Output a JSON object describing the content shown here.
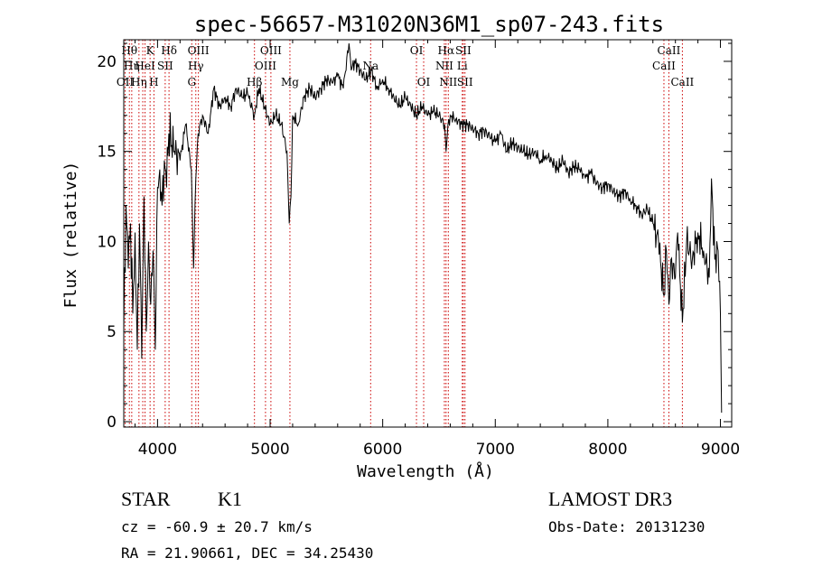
{
  "chart_data": {
    "type": "line",
    "title": "spec-56657-M31020N36M1_sp07-243.fits",
    "xlabel": "Wavelength (Å)",
    "ylabel": "Flux (relative)",
    "xlim": [
      3700,
      9100
    ],
    "ylim": [
      -0.3,
      21.2
    ],
    "xticks": [
      4000,
      5000,
      6000,
      7000,
      8000,
      9000
    ],
    "yticks": [
      0,
      5,
      10,
      15,
      20
    ],
    "grid": false,
    "series": [
      {
        "name": "spectrum",
        "x": [
          3700,
          3720,
          3740,
          3760,
          3780,
          3800,
          3820,
          3840,
          3860,
          3880,
          3900,
          3920,
          3940,
          3960,
          3980,
          4000,
          4020,
          4040,
          4060,
          4080,
          4100,
          4150,
          4200,
          4250,
          4300,
          4320,
          4340,
          4360,
          4400,
          4450,
          4500,
          4550,
          4600,
          4650,
          4700,
          4750,
          4800,
          4860,
          4900,
          4950,
          5000,
          5050,
          5100,
          5150,
          5170,
          5185,
          5200,
          5250,
          5300,
          5350,
          5400,
          5450,
          5500,
          5550,
          5600,
          5650,
          5700,
          5720,
          5750,
          5800,
          5850,
          5900,
          5950,
          6000,
          6050,
          6100,
          6150,
          6200,
          6250,
          6300,
          6350,
          6400,
          6450,
          6500,
          6550,
          6563,
          6580,
          6600,
          6650,
          6700,
          6750,
          6800,
          6850,
          6900,
          6950,
          7000,
          7050,
          7100,
          7150,
          7200,
          7250,
          7300,
          7350,
          7400,
          7450,
          7500,
          7550,
          7600,
          7650,
          7700,
          7750,
          7800,
          7850,
          7900,
          7950,
          8000,
          8050,
          8100,
          8150,
          8200,
          8250,
          8300,
          8350,
          8400,
          8450,
          8498,
          8520,
          8542,
          8560,
          8600,
          8620,
          8662,
          8700,
          8750,
          8800,
          8850,
          8900,
          8920,
          8950,
          8980,
          9000,
          9010
        ],
        "values": [
          5.0,
          12.0,
          8.5,
          11.0,
          6.0,
          10.5,
          4.0,
          11.0,
          3.5,
          12.5,
          5.0,
          10.0,
          6.5,
          9.5,
          4.0,
          13.0,
          14.0,
          12.0,
          14.5,
          13.0,
          16.0,
          15.0,
          14.5,
          16.5,
          14.0,
          8.5,
          13.5,
          16.0,
          17.0,
          16.0,
          18.5,
          17.5,
          18.0,
          17.5,
          18.5,
          18.0,
          18.2,
          17.0,
          18.5,
          17.5,
          16.5,
          17.0,
          16.5,
          15.0,
          11.0,
          12.5,
          17.0,
          16.5,
          18.0,
          18.5,
          18.0,
          18.5,
          19.0,
          18.8,
          19.2,
          18.5,
          21.0,
          19.5,
          20.0,
          19.5,
          19.0,
          19.5,
          18.5,
          19.0,
          18.5,
          18.0,
          17.5,
          18.0,
          17.5,
          17.0,
          17.5,
          17.0,
          17.2,
          17.0,
          16.5,
          15.0,
          16.5,
          17.0,
          16.8,
          16.5,
          16.5,
          16.3,
          16.0,
          16.2,
          15.8,
          15.5,
          16.0,
          15.0,
          15.5,
          15.2,
          15.0,
          14.8,
          15.0,
          14.5,
          14.8,
          14.5,
          14.0,
          14.5,
          13.8,
          14.2,
          14.0,
          13.5,
          13.8,
          13.2,
          13.0,
          13.2,
          12.8,
          12.5,
          12.8,
          12.3,
          12.0,
          11.5,
          11.8,
          11.0,
          10.0,
          7.0,
          9.5,
          6.5,
          9.0,
          8.0,
          10.5,
          5.5,
          10.0,
          9.0,
          10.5,
          9.5,
          8.0,
          13.5,
          9.0,
          9.5,
          6.0,
          0.5
        ]
      }
    ],
    "lines": [
      {
        "x": 3712,
        "label": "OII",
        "row": 2
      },
      {
        "x": 3750,
        "label": "Hθ",
        "row": 0
      },
      {
        "x": 3771,
        "label": "Hη",
        "row": 1
      },
      {
        "x": 3835,
        "label": "Hη",
        "row": 2
      },
      {
        "x": 3869,
        "label": "",
        "row": 0
      },
      {
        "x": 3889,
        "label": "HeI",
        "row": 1
      },
      {
        "x": 3934,
        "label": "K",
        "row": 0
      },
      {
        "x": 3968,
        "label": "H",
        "row": 2
      },
      {
        "x": 4068,
        "label": "SII",
        "row": 1
      },
      {
        "x": 4102,
        "label": "Hδ",
        "row": 0
      },
      {
        "x": 4304,
        "label": "G",
        "row": 2
      },
      {
        "x": 4340,
        "label": "Hγ",
        "row": 1
      },
      {
        "x": 4363,
        "label": "OIII",
        "row": 0
      },
      {
        "x": 4861,
        "label": "Hβ",
        "row": 2
      },
      {
        "x": 4959,
        "label": "OIII",
        "row": 1
      },
      {
        "x": 5007,
        "label": "OIII",
        "row": 0
      },
      {
        "x": 5176,
        "label": "Mg",
        "row": 2
      },
      {
        "x": 5893,
        "label": "Na",
        "row": 1
      },
      {
        "x": 6300,
        "label": "OI",
        "row": 0
      },
      {
        "x": 6364,
        "label": "OI",
        "row": 2
      },
      {
        "x": 6548,
        "label": "NII",
        "row": 1
      },
      {
        "x": 6563,
        "label": "Hα",
        "row": 0
      },
      {
        "x": 6583,
        "label": "NII",
        "row": 2
      },
      {
        "x": 6707,
        "label": "Li",
        "row": 1
      },
      {
        "x": 6716,
        "label": "SII",
        "row": 0
      },
      {
        "x": 6731,
        "label": "SII",
        "row": 2
      },
      {
        "x": 8498,
        "label": "CaII",
        "row": 1
      },
      {
        "x": 8542,
        "label": "CaII",
        "row": 0
      },
      {
        "x": 8662,
        "label": "CaII",
        "row": 2
      }
    ]
  },
  "info": {
    "class": "STAR",
    "subclass": "K1",
    "survey": "LAMOST DR3",
    "cz": "cz = -60.9 ± 20.7 km/s",
    "obs_date": "Obs-Date: 20131230",
    "coords": "RA =  21.90661, DEC =  34.25430"
  }
}
